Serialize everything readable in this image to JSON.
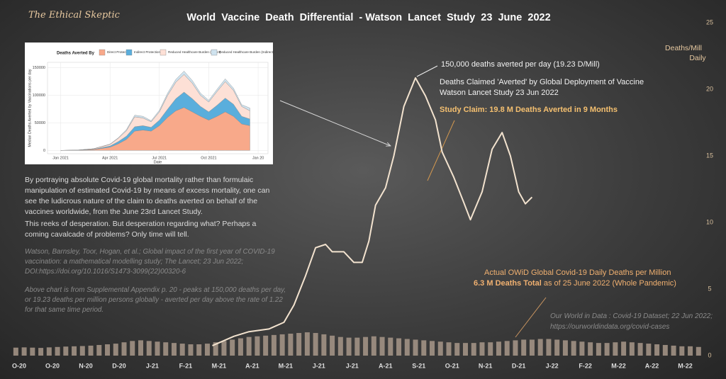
{
  "brand": "The Ethical Skeptic",
  "notes": [
    "By portraying absolute Covid-19 global mortality rather than formulaic manipulation of estimated Covid-19 by means of excess mortality, one can see the ludicrous nature of the claim to deaths averted on behalf of the vaccines worldwide, from the June 23rd Lancet Study.",
    "This reeks of desperation. But desperation regarding what? Perhaps a coming cavalcade of problems? Only time will tell.",
    "Watson, Barnsley, Toor, Hogan, et al.; Global impact of the first year of COVID-19 vaccination: a mathematical modelling study; The Lancet; 23 Jun 2022; DOI:https://doi.org/10.1016/S1473-3099(22)00320-6",
    "Above chart is from Supplemental Appendix p. 20 - peaks at 150,000 deaths per day, or 19.23 deaths per million persons globally - averted per day above the rate of 1.22 for that same time period."
  ],
  "chart_data": [
    {
      "type": "combo",
      "title": "World  Vaccine  Death  Differential  - Watson  Lancet  Study  23  June  2022",
      "y_label": [
        "Deaths/Mill",
        "Daily"
      ],
      "xlim": [
        -0.15,
        20.5
      ],
      "xticks": [
        {
          "value": 0,
          "label": "O-20"
        },
        {
          "value": 1,
          "label": "O-20"
        },
        {
          "value": 2,
          "label": "N-20"
        },
        {
          "value": 3,
          "label": "D-20"
        },
        {
          "value": 4,
          "label": "J-21"
        },
        {
          "value": 5,
          "label": "F-21"
        },
        {
          "value": 6,
          "label": "M-21"
        },
        {
          "value": 7,
          "label": "A-21"
        },
        {
          "value": 8,
          "label": "M-21"
        },
        {
          "value": 9,
          "label": "J-21"
        },
        {
          "value": 10,
          "label": "J-21"
        },
        {
          "value": 11,
          "label": "A-21"
        },
        {
          "value": 12,
          "label": "S-21"
        },
        {
          "value": 13,
          "label": "O-21"
        },
        {
          "value": 14,
          "label": "N-21"
        },
        {
          "value": 15,
          "label": "D-21"
        },
        {
          "value": 16,
          "label": "J-22"
        },
        {
          "value": 17,
          "label": "F-22"
        },
        {
          "value": 18,
          "label": "M-22"
        },
        {
          "value": 19,
          "label": "A-22"
        },
        {
          "value": 20,
          "label": "M-22"
        }
      ],
      "ylim": [
        0,
        25
      ],
      "yticks": [
        0,
        5,
        10,
        15,
        20,
        25
      ],
      "series": [
        {
          "name": "Deaths Claimed 'Averted' by Global Deployment of Vaccine",
          "type": "line",
          "color": "#f3e3cf",
          "x": [
            5.8,
            6.45,
            6.9,
            7.5,
            7.95,
            8.25,
            8.6,
            8.9,
            9.2,
            9.4,
            9.75,
            10.05,
            10.3,
            10.5,
            10.7,
            11.0,
            11.25,
            11.55,
            11.9,
            12.2,
            12.5,
            12.7,
            13.05,
            13.35,
            13.55,
            13.9,
            14.2,
            14.5,
            14.75,
            15.0,
            15.2,
            15.4
          ],
          "values": [
            0.75,
            1.45,
            1.8,
            2.0,
            2.5,
            3.8,
            6.0,
            8.1,
            8.35,
            7.8,
            7.8,
            7.0,
            7.0,
            8.6,
            11.3,
            12.6,
            15.0,
            18.7,
            20.85,
            19.5,
            17.7,
            15.3,
            13.4,
            11.5,
            10.2,
            12.3,
            15.5,
            16.75,
            15.0,
            12.3,
            11.4,
            11.9
          ]
        },
        {
          "name": "Actual OWiD Global Covid-19 Daily Deaths per Million",
          "type": "bar",
          "color": "#a8988a",
          "x": [
            -0.1,
            0.15,
            0.4,
            0.65,
            0.9,
            1.15,
            1.4,
            1.65,
            1.9,
            2.15,
            2.4,
            2.65,
            2.9,
            3.15,
            3.4,
            3.65,
            3.9,
            4.15,
            4.4,
            4.65,
            4.9,
            5.15,
            5.4,
            5.65,
            5.9,
            6.15,
            6.4,
            6.65,
            6.9,
            7.15,
            7.4,
            7.65,
            7.9,
            8.15,
            8.4,
            8.65,
            8.9,
            9.15,
            9.4,
            9.65,
            9.9,
            10.15,
            10.4,
            10.65,
            10.9,
            11.15,
            11.4,
            11.65,
            11.9,
            12.15,
            12.4,
            12.65,
            12.9,
            13.15,
            13.4,
            13.65,
            13.9,
            14.15,
            14.4,
            14.65,
            14.9,
            15.15,
            15.4,
            15.65,
            15.9,
            16.15,
            16.4,
            16.65,
            16.9,
            17.15,
            17.4,
            17.65,
            17.9,
            18.15,
            18.4,
            18.65,
            18.9,
            19.15,
            19.4,
            19.65,
            19.9,
            20.15,
            20.4
          ],
          "values": [
            0.6,
            0.62,
            0.6,
            0.58,
            0.62,
            0.65,
            0.68,
            0.7,
            0.72,
            0.75,
            0.8,
            0.85,
            0.9,
            1.0,
            1.1,
            1.15,
            1.1,
            1.05,
            1.0,
            0.95,
            0.9,
            0.85,
            0.85,
            0.9,
            1.0,
            1.1,
            1.2,
            1.3,
            1.4,
            1.45,
            1.5,
            1.55,
            1.6,
            1.65,
            1.7,
            1.75,
            1.7,
            1.6,
            1.5,
            1.4,
            1.35,
            1.35,
            1.4,
            1.45,
            1.4,
            1.35,
            1.3,
            1.25,
            1.2,
            1.15,
            1.1,
            1.05,
            1.0,
            0.95,
            0.95,
            0.95,
            1.0,
            1.0,
            1.05,
            1.1,
            1.15,
            1.2,
            1.2,
            1.25,
            1.25,
            1.2,
            1.15,
            1.1,
            1.05,
            1.0,
            0.95,
            0.95,
            1.0,
            1.05,
            1.0,
            0.95,
            0.9,
            0.85,
            0.8,
            0.75,
            0.7,
            0.7,
            0.65
          ]
        }
      ],
      "annotations": {
        "peak": "150,000 deaths averted per day (19.23 D/Mill)",
        "study": "Watson Lancet Study  23 Jun 2022",
        "claim": "Study Claim:  19.8 M Deaths Averted in 9 Months",
        "total": "6.3 M Deaths Total",
        "total_note": "as of 25 June 2022  (Whole Pandemic)",
        "source_1": "Our World in Data : Covid-19 Dataset; 22 Jun 2022;",
        "source_2": "https://ourworldindata.org/covid-cases"
      }
    },
    {
      "type": "area",
      "stacked": true,
      "legend_title": "Deaths Averted By",
      "y_label": "Median Deaths Averted by Vaccinations per day",
      "x_label": "Date",
      "xlim": [
        -0.8,
        12.6
      ],
      "xticks": [
        {
          "value": 0,
          "label": "Jan 2021"
        },
        {
          "value": 3,
          "label": "Apr 2021"
        },
        {
          "value": 6,
          "label": "Jul 2021"
        },
        {
          "value": 9,
          "label": "Oct 2021"
        },
        {
          "value": 12,
          "label": "Jan 20"
        }
      ],
      "ylim": [
        -6000,
        160000
      ],
      "yticks": [
        0,
        50000,
        100000,
        150000
      ],
      "x": [
        0,
        1,
        2,
        3,
        3.5,
        4,
        4.5,
        5,
        5.5,
        6,
        6.5,
        7,
        7.5,
        8,
        8.5,
        9,
        9.5,
        10,
        10.5,
        11,
        11.5
      ],
      "series": [
        {
          "name": "Direct Protection",
          "color": "#f8a98a",
          "values": [
            0,
            300,
            1500,
            6000,
            12000,
            20000,
            35000,
            37000,
            35000,
            45000,
            60000,
            72000,
            78000,
            70000,
            62000,
            55000,
            62000,
            70000,
            62000,
            48000,
            45000
          ]
        },
        {
          "name": "Indirect Protection",
          "color": "#5aaedc",
          "values": [
            0,
            100,
            500,
            2000,
            4000,
            6000,
            8000,
            8000,
            7000,
            10000,
            15000,
            22000,
            28000,
            24000,
            18000,
            15000,
            20000,
            25000,
            22000,
            14000,
            12000
          ]
        },
        {
          "name": "Reduced Healthcare Burden (Direct)",
          "color": "#fde0d6",
          "values": [
            0,
            200,
            1000,
            3000,
            6000,
            10000,
            18000,
            14000,
            10000,
            15000,
            25000,
            30000,
            32000,
            28000,
            20000,
            18000,
            25000,
            30000,
            25000,
            18000,
            15000
          ]
        },
        {
          "name": "Reduced Healthcare Burden (Indirect)",
          "color": "#cfe3ef",
          "values": [
            0,
            0,
            200,
            500,
            1000,
            2000,
            3000,
            3000,
            2000,
            3000,
            4000,
            5000,
            6000,
            5000,
            4000,
            3000,
            4000,
            5000,
            4000,
            3000,
            5000
          ]
        }
      ]
    }
  ]
}
